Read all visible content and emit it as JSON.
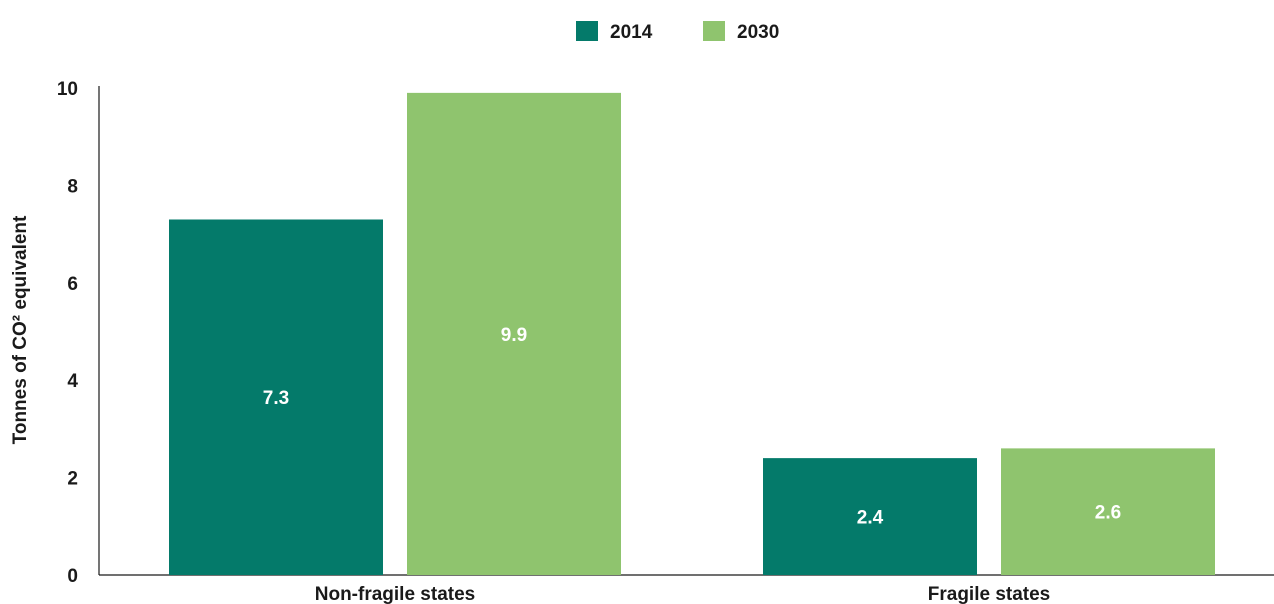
{
  "chart_data": {
    "type": "bar",
    "categories": [
      "Non-fragile states",
      "Fragile states"
    ],
    "series": [
      {
        "name": "2014",
        "values": [
          7.3,
          2.4
        ],
        "color": "#047a6a"
      },
      {
        "name": "2030",
        "values": [
          9.9,
          2.6
        ],
        "color": "#8fc46e"
      }
    ],
    "ylabel": "Tonnes of CO² equivalent",
    "xlabel": "",
    "title": "",
    "ylim": [
      0,
      10
    ],
    "yticks": [
      0,
      2,
      4,
      6,
      8,
      10
    ],
    "grid": false,
    "legend_position": "top-center",
    "data_labels": true
  }
}
